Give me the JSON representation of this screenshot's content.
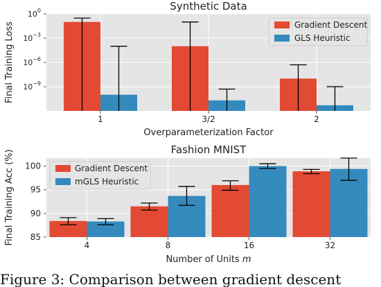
{
  "caption": "Figure 3:  Comparison between gradient descent",
  "colors": {
    "gd": "#e24a33",
    "gls": "#348abd",
    "panel_bg": "#e5e5e5",
    "grid": "#ffffff",
    "error": "#000000"
  },
  "chart_data": [
    {
      "type": "bar",
      "title": "Synthetic Data",
      "xlabel": "Overparameterization Factor",
      "ylabel": "Final Training Loss",
      "yscale": "log",
      "ylim_exponent": [
        -12,
        0
      ],
      "yticks": [
        {
          "exponent": 0,
          "label": "10",
          "sup": "0"
        },
        {
          "exponent": -3,
          "label": "10",
          "sup": "−3"
        },
        {
          "exponent": -6,
          "label": "10",
          "sup": "−6"
        },
        {
          "exponent": -9,
          "label": "10",
          "sup": "−9"
        }
      ],
      "categories": [
        "1",
        "3/2",
        "2"
      ],
      "legend_position": "top-right",
      "series": [
        {
          "name": "Gradient Descent",
          "color": "#e24a33",
          "values": [
            0.1,
            0.0001,
            1e-08
          ],
          "err_low": [
            1e-12,
            1e-12,
            1e-12
          ],
          "err_high": [
            0.3,
            0.1,
            5e-07
          ]
        },
        {
          "name": "GLS Heuristic",
          "color": "#348abd",
          "values": [
            1e-10,
            2e-11,
            5e-12
          ],
          "err_low": [
            1e-12,
            1e-12,
            1e-12
          ],
          "err_high": [
            0.0001,
            5e-10,
            1e-09
          ]
        }
      ]
    },
    {
      "type": "bar",
      "title": "Fashion MNIST",
      "xlabel": "Number of Units",
      "xlabel_symbol": "m",
      "ylabel": "Final Training Acc (%)",
      "ylim": [
        85,
        101.7
      ],
      "yticks": [
        85,
        90,
        95,
        100
      ],
      "categories": [
        "4",
        "8",
        "16",
        "32"
      ],
      "legend_position": "top-left",
      "series": [
        {
          "name": "Gradient Descent",
          "color": "#e24a33",
          "values": [
            88.4,
            91.5,
            96.0,
            98.9
          ],
          "err_low": [
            87.6,
            90.7,
            94.9,
            98.4
          ],
          "err_high": [
            89.1,
            92.2,
            96.9,
            99.3
          ]
        },
        {
          "name": "mGLS Heuristic",
          "color": "#348abd",
          "values": [
            88.3,
            93.7,
            100.0,
            99.4
          ],
          "err_low": [
            87.6,
            91.7,
            99.5,
            97.0
          ],
          "err_high": [
            88.9,
            95.7,
            100.5,
            101.9
          ]
        }
      ]
    }
  ]
}
